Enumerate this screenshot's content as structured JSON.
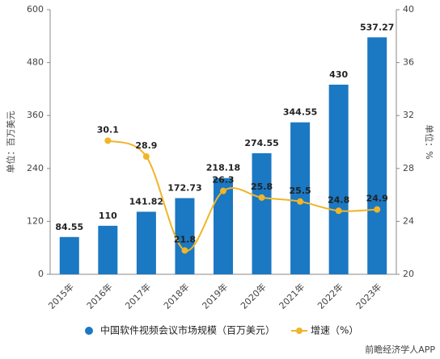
{
  "chart_data": {
    "type": "bar_line",
    "categories": [
      "2015年",
      "2016年",
      "2017年",
      "2018年",
      "2019年",
      "2020年",
      "2021年",
      "2022年",
      "2023年"
    ],
    "series": [
      {
        "name": "中国软件视频会议市场规模（百万美元）",
        "type": "bar",
        "color": "#1b78c2",
        "axis": "y",
        "values": [
          84.55,
          110,
          141.82,
          172.73,
          218.18,
          274.55,
          344.55,
          430,
          537.27
        ]
      },
      {
        "name": "增速（%）",
        "type": "line",
        "color": "#f0b528",
        "axis": "y2",
        "values": [
          null,
          30.1,
          28.9,
          21.8,
          26.3,
          25.8,
          25.5,
          24.8,
          24.9
        ]
      }
    ],
    "ylabel": "单位：百万美元",
    "y2label": "单位：%",
    "ylim": [
      0,
      600
    ],
    "yticks": [
      0,
      120,
      240,
      360,
      480,
      600
    ],
    "y2lim": [
      20,
      40
    ],
    "y2ticks": [
      20,
      24,
      28,
      32,
      36,
      40
    ],
    "legend": "bottom",
    "source": "前瞻经济学人APP"
  }
}
